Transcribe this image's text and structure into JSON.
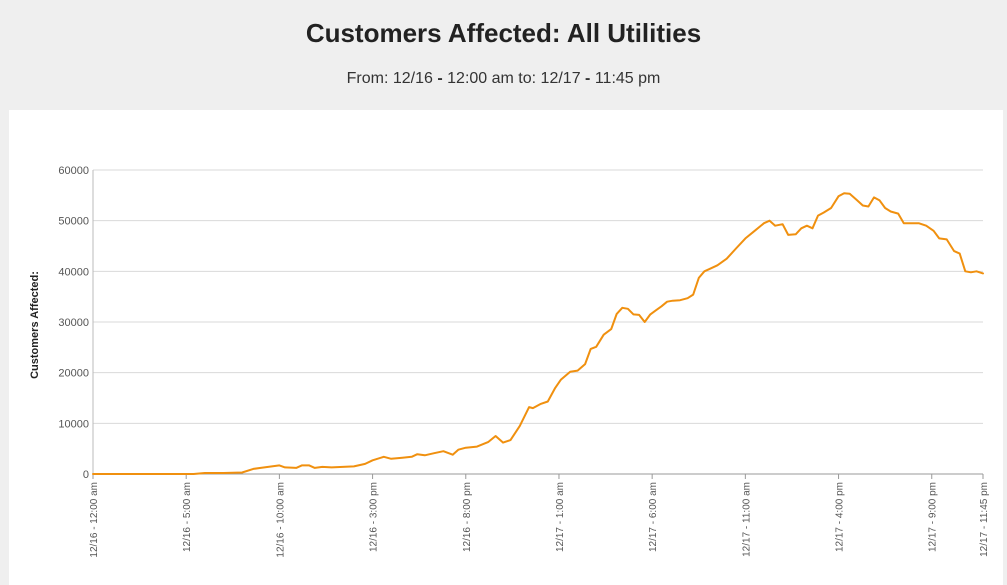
{
  "title": "Customers Affected: All Utilities",
  "subtitle": {
    "from_label": "From: ",
    "from_date": "12/16",
    "from_time": "12:00 am",
    "to_label": " to: ",
    "to_date": "12/17",
    "to_time": "11:45 pm"
  },
  "colors": {
    "line": "#f0900f",
    "grid": "#d9d9d9",
    "background": "#efefef",
    "panel": "#ffffff"
  },
  "chart_data": {
    "type": "line",
    "ylabel": "Customers Affected:",
    "xlabel": "",
    "ylim": [
      0,
      60000
    ],
    "yticks": [
      0,
      10000,
      20000,
      30000,
      40000,
      50000,
      60000
    ],
    "grid": true,
    "x_tick_labels": [
      "12/16 - 12:00 am",
      "12/16 - 5:00 am",
      "12/16 - 10:00 am",
      "12/16 - 3:00 pm",
      "12/16 - 8:00 pm",
      "12/17 - 1:00 am",
      "12/17 - 6:00 am",
      "12/17 - 11:00 am",
      "12/17 - 4:00 pm",
      "12/17 - 9:00 pm",
      "12/17 - 11:45 pm"
    ],
    "x_tick_hours": [
      0,
      5,
      10,
      15,
      20,
      25,
      30,
      35,
      40,
      45,
      47.75
    ],
    "x_unit": "hours from 12/16 - 12:00 am",
    "series": [
      {
        "points": [
          [
            0,
            0
          ],
          [
            5.4,
            0
          ],
          [
            6,
            200
          ],
          [
            7,
            200
          ],
          [
            8,
            300
          ],
          [
            8.6,
            1000
          ],
          [
            9,
            1200
          ],
          [
            9.6,
            1500
          ],
          [
            10,
            1700
          ],
          [
            10.3,
            1300
          ],
          [
            10.9,
            1200
          ],
          [
            11.2,
            1700
          ],
          [
            11.6,
            1700
          ],
          [
            11.9,
            1200
          ],
          [
            12.3,
            1400
          ],
          [
            12.8,
            1300
          ],
          [
            13.4,
            1400
          ],
          [
            14,
            1500
          ],
          [
            14.6,
            2000
          ],
          [
            15,
            2700
          ],
          [
            15.6,
            3400
          ],
          [
            16,
            3000
          ],
          [
            16.6,
            3200
          ],
          [
            17.1,
            3400
          ],
          [
            17.4,
            3900
          ],
          [
            17.8,
            3700
          ],
          [
            18.3,
            4100
          ],
          [
            18.8,
            4500
          ],
          [
            19.3,
            3800
          ],
          [
            19.6,
            4800
          ],
          [
            20,
            5200
          ],
          [
            20.6,
            5400
          ],
          [
            21.2,
            6300
          ],
          [
            21.6,
            7500
          ],
          [
            22,
            6200
          ],
          [
            22.4,
            6700
          ],
          [
            22.9,
            9500
          ],
          [
            23.4,
            13200
          ],
          [
            23.6,
            13000
          ],
          [
            24,
            13800
          ],
          [
            24.4,
            14300
          ],
          [
            24.8,
            17000
          ],
          [
            25.1,
            18600
          ],
          [
            25.6,
            20200
          ],
          [
            26,
            20400
          ],
          [
            26.4,
            21700
          ],
          [
            26.7,
            24700
          ],
          [
            27,
            25100
          ],
          [
            27.4,
            27500
          ],
          [
            27.8,
            28600
          ],
          [
            28.1,
            31600
          ],
          [
            28.4,
            32800
          ],
          [
            28.7,
            32600
          ],
          [
            29,
            31500
          ],
          [
            29.3,
            31400
          ],
          [
            29.6,
            30000
          ],
          [
            29.9,
            31500
          ],
          [
            30.2,
            32300
          ],
          [
            30.5,
            33100
          ],
          [
            30.8,
            34000
          ],
          [
            31.1,
            34200
          ],
          [
            31.5,
            34300
          ],
          [
            31.9,
            34700
          ],
          [
            32.2,
            35400
          ],
          [
            32.5,
            38700
          ],
          [
            32.8,
            40000
          ],
          [
            33.1,
            40500
          ],
          [
            33.5,
            41200
          ],
          [
            34,
            42500
          ],
          [
            34.5,
            44500
          ],
          [
            35,
            46500
          ],
          [
            35.5,
            48000
          ],
          [
            36,
            49500
          ],
          [
            36.3,
            50000
          ],
          [
            36.6,
            49000
          ],
          [
            37,
            49300
          ],
          [
            37.3,
            47200
          ],
          [
            37.7,
            47300
          ],
          [
            38,
            48500
          ],
          [
            38.3,
            49000
          ],
          [
            38.6,
            48500
          ],
          [
            38.9,
            51000
          ],
          [
            39.2,
            51600
          ],
          [
            39.6,
            52500
          ],
          [
            40,
            54800
          ],
          [
            40.3,
            55400
          ],
          [
            40.6,
            55300
          ],
          [
            41,
            54000
          ],
          [
            41.3,
            53000
          ],
          [
            41.6,
            52800
          ],
          [
            41.9,
            54600
          ],
          [
            42.2,
            54000
          ],
          [
            42.5,
            52500
          ],
          [
            42.8,
            51800
          ],
          [
            43.2,
            51400
          ],
          [
            43.5,
            49500
          ],
          [
            43.9,
            49500
          ],
          [
            44.3,
            49500
          ],
          [
            44.7,
            49000
          ],
          [
            45.1,
            48000
          ],
          [
            45.4,
            46500
          ],
          [
            45.8,
            46300
          ],
          [
            46.2,
            44000
          ],
          [
            46.5,
            43500
          ],
          [
            46.8,
            40000
          ],
          [
            47.1,
            39800
          ],
          [
            47.4,
            40000
          ],
          [
            47.75,
            39600
          ]
        ]
      }
    ]
  }
}
